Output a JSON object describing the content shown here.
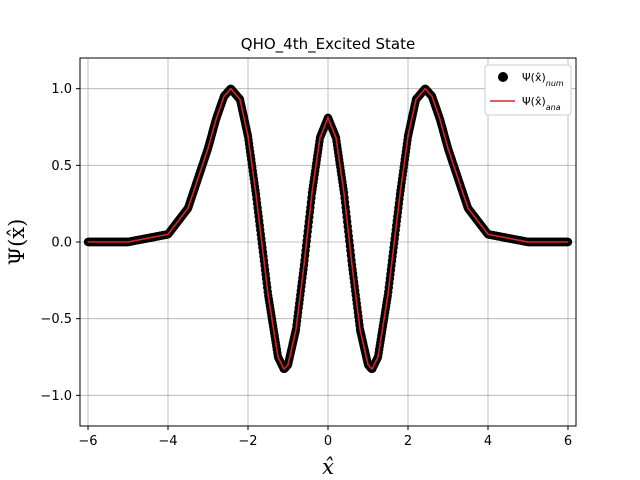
{
  "chart_data": {
    "type": "line",
    "title": "QHO_4th_Excited State",
    "xlabel": "x̂",
    "ylabel": "Ψ(x̂)",
    "xlim": [
      -6.2,
      6.2
    ],
    "ylim": [
      -1.2,
      1.2
    ],
    "x_ticks": [
      -6,
      -4,
      -2,
      0,
      2,
      4,
      6
    ],
    "x_tick_labels": [
      "−6",
      "−4",
      "−2",
      "0",
      "2",
      "4",
      "6"
    ],
    "y_ticks": [
      -1.0,
      -0.5,
      0.0,
      0.5,
      1.0
    ],
    "y_tick_labels": [
      "−1.0",
      "−0.5",
      "0.0",
      "0.5",
      "1.0"
    ],
    "grid": true,
    "legend_position": "top-right",
    "x_range": [
      -6,
      6
    ],
    "series": [
      {
        "name": "Ψ(x̂)num",
        "kind": "scatter",
        "color": "#000000",
        "x": [
          -6.0,
          -5.0,
          -4.0,
          -3.5,
          -3.0,
          -2.8,
          -2.6,
          -2.43,
          -2.2,
          -2.0,
          -1.8,
          -1.5,
          -1.25,
          -1.1,
          -1.0,
          -0.8,
          -0.6,
          -0.4,
          -0.2,
          0.0,
          0.2,
          0.4,
          0.6,
          0.8,
          1.0,
          1.1,
          1.25,
          1.5,
          1.8,
          2.0,
          2.2,
          2.43,
          2.6,
          2.8,
          3.0,
          3.5,
          4.0,
          5.0,
          6.0
        ],
        "values": [
          0.0,
          0.0,
          0.05,
          0.22,
          0.61,
          0.8,
          0.95,
          1.0,
          0.93,
          0.69,
          0.31,
          -0.34,
          -0.75,
          -0.83,
          -0.8,
          -0.57,
          -0.15,
          0.32,
          0.68,
          0.81,
          0.68,
          0.32,
          -0.15,
          -0.57,
          -0.8,
          -0.83,
          -0.75,
          -0.34,
          0.31,
          0.69,
          0.93,
          1.0,
          0.95,
          0.8,
          0.61,
          0.22,
          0.05,
          0.0,
          0.0
        ]
      },
      {
        "name": "Ψ(x̂)ana",
        "kind": "line",
        "color": "#d62728",
        "x": [
          -6.0,
          -5.0,
          -4.0,
          -3.5,
          -3.0,
          -2.8,
          -2.6,
          -2.43,
          -2.2,
          -2.0,
          -1.8,
          -1.5,
          -1.25,
          -1.1,
          -1.0,
          -0.8,
          -0.6,
          -0.4,
          -0.2,
          0.0,
          0.2,
          0.4,
          0.6,
          0.8,
          1.0,
          1.1,
          1.25,
          1.5,
          1.8,
          2.0,
          2.2,
          2.43,
          2.6,
          2.8,
          3.0,
          3.5,
          4.0,
          5.0,
          6.0
        ],
        "values": [
          0.0,
          0.0,
          0.05,
          0.22,
          0.61,
          0.8,
          0.95,
          1.0,
          0.93,
          0.69,
          0.31,
          -0.34,
          -0.75,
          -0.83,
          -0.8,
          -0.57,
          -0.15,
          0.32,
          0.68,
          0.81,
          0.68,
          0.32,
          -0.15,
          -0.57,
          -0.8,
          -0.83,
          -0.75,
          -0.34,
          0.31,
          0.69,
          0.93,
          1.0,
          0.95,
          0.8,
          0.61,
          0.22,
          0.05,
          0.0,
          0.0
        ]
      }
    ],
    "legend": {
      "num_main": "Ψ(x̂)",
      "num_sub": "num",
      "ana_main": "Ψ(x̂)",
      "ana_sub": "ana"
    }
  }
}
